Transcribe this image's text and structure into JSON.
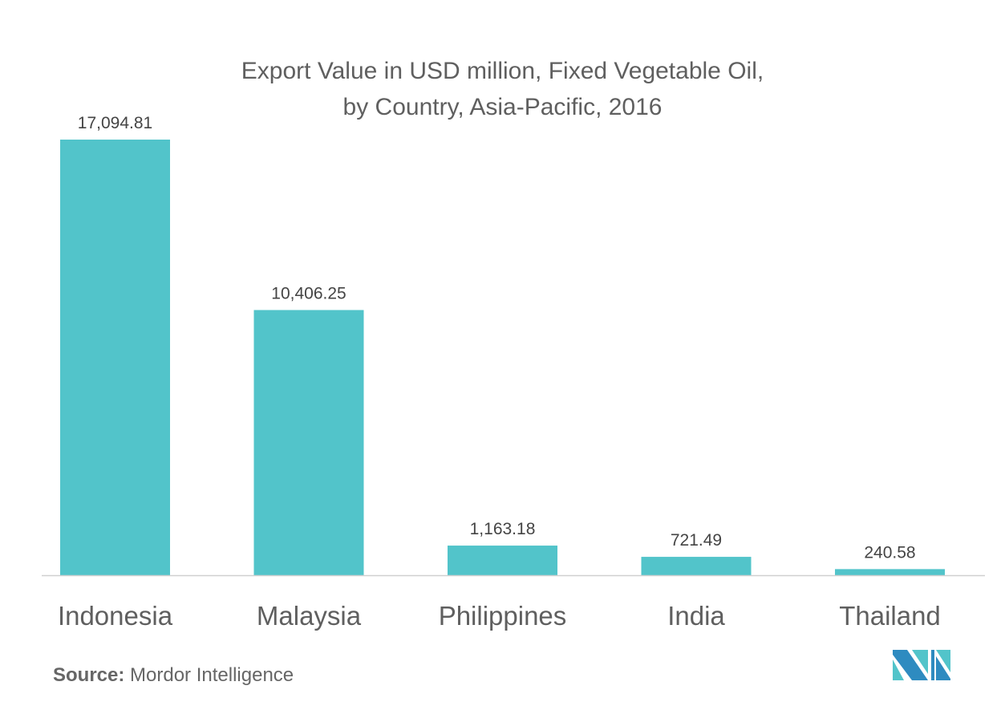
{
  "chart_data": {
    "type": "bar",
    "title_line1": "Export Value in USD million, Fixed Vegetable Oil,",
    "title_line2": "by Country, Asia-Pacific, 2016",
    "categories": [
      "Indonesia",
      "Malaysia",
      "Philippines",
      "India",
      "Thailand"
    ],
    "values": [
      17094.81,
      10406.25,
      1163.18,
      721.49,
      240.58
    ],
    "value_labels": [
      "17,094.81",
      "10,406.25",
      "1,163.18",
      "721.49",
      "240.58"
    ],
    "xlabel": "",
    "ylabel": "",
    "ylim": [
      0,
      17094.81
    ],
    "grid": false,
    "bar_color": "#52c4ca"
  },
  "source": {
    "label": "Source:",
    "text": "Mordor Intelligence"
  },
  "logo": {
    "colors": [
      "#2e8bc0",
      "#52c4ca"
    ]
  }
}
